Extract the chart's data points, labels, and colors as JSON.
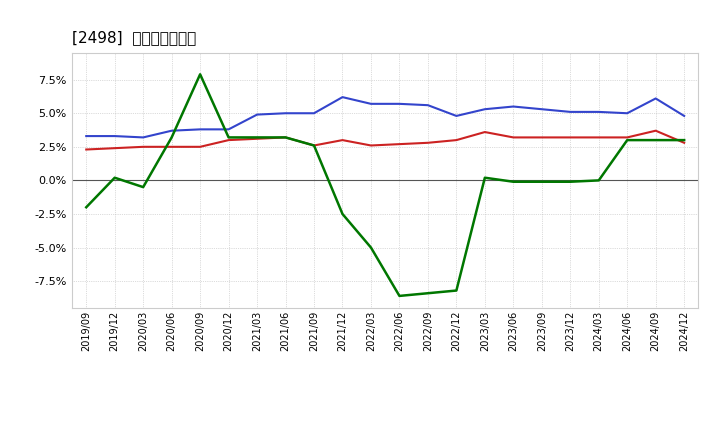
{
  "title": "[2498]  マージンの推移",
  "x_labels": [
    "2019/09",
    "2019/12",
    "2020/03",
    "2020/06",
    "2020/09",
    "2020/12",
    "2021/03",
    "2021/06",
    "2021/09",
    "2021/12",
    "2022/03",
    "2022/06",
    "2022/09",
    "2022/12",
    "2023/03",
    "2023/06",
    "2023/09",
    "2023/12",
    "2024/03",
    "2024/06",
    "2024/09",
    "2024/12"
  ],
  "keijo_rieki": [
    3.3,
    3.3,
    3.2,
    3.7,
    3.8,
    3.8,
    4.9,
    5.0,
    5.0,
    6.2,
    5.7,
    5.7,
    5.6,
    4.8,
    5.3,
    5.5,
    5.3,
    5.1,
    5.1,
    5.0,
    6.1,
    4.8
  ],
  "toki_junrieki": [
    2.3,
    2.4,
    2.5,
    2.5,
    2.5,
    3.0,
    3.1,
    3.2,
    2.6,
    3.0,
    2.6,
    2.7,
    2.8,
    3.0,
    3.6,
    3.2,
    3.2,
    3.2,
    3.2,
    3.2,
    3.7,
    2.8
  ],
  "eigyo_cf": [
    -2.0,
    0.2,
    -0.5,
    3.2,
    7.9,
    3.2,
    3.2,
    3.2,
    2.6,
    -2.5,
    -5.0,
    -8.6,
    -8.4,
    -8.2,
    0.2,
    -0.1,
    -0.1,
    -0.1,
    0.0,
    3.0,
    3.0,
    3.0
  ],
  "keijo_color": "#3344cc",
  "toki_color": "#cc2222",
  "eigyo_color": "#007700",
  "background_color": "#ffffff",
  "grid_color": "#bbbbbb",
  "ylim": [
    -9.5,
    9.5
  ],
  "yticks": [
    -7.5,
    -5.0,
    -2.5,
    0.0,
    2.5,
    5.0,
    7.5
  ]
}
